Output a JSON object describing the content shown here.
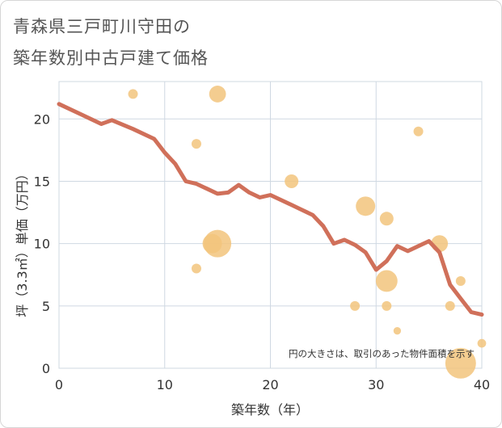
{
  "chart_data": {
    "type": "scatter",
    "title_lines": [
      "青森県三戸町川守田の",
      "築年数別中古戸建て価格"
    ],
    "xlabel": "築年数（年）",
    "ylabel": "坪（3.3㎡）単価（万円）",
    "xlim": [
      0,
      40
    ],
    "ylim": [
      0,
      23
    ],
    "xticks": [
      0,
      10,
      20,
      30,
      40
    ],
    "yticks": [
      0,
      5,
      10,
      15,
      20
    ],
    "note": "円の大きさは、取引のあった物件面積を示す",
    "colors": {
      "bubble": "#f2c47c",
      "line": "#d0705a",
      "grid": "#cfd8e2"
    },
    "bubbles": [
      {
        "x": 7,
        "y": 22,
        "size": 1
      },
      {
        "x": 15,
        "y": 22,
        "size": 3
      },
      {
        "x": 13,
        "y": 18,
        "size": 1
      },
      {
        "x": 34,
        "y": 19,
        "size": 1
      },
      {
        "x": 22,
        "y": 15,
        "size": 2
      },
      {
        "x": 29,
        "y": 13,
        "size": 4
      },
      {
        "x": 31,
        "y": 12,
        "size": 2
      },
      {
        "x": 14.5,
        "y": 10,
        "size": 4
      },
      {
        "x": 15,
        "y": 10,
        "size": 8
      },
      {
        "x": 36,
        "y": 10,
        "size": 3
      },
      {
        "x": 13,
        "y": 8,
        "size": 1
      },
      {
        "x": 31,
        "y": 7,
        "size": 5
      },
      {
        "x": 38,
        "y": 7,
        "size": 1
      },
      {
        "x": 28,
        "y": 5,
        "size": 1
      },
      {
        "x": 31,
        "y": 5,
        "size": 1
      },
      {
        "x": 37,
        "y": 5,
        "size": 1
      },
      {
        "x": 32,
        "y": 3,
        "size": 0.6
      },
      {
        "x": 40,
        "y": 2,
        "size": 0.8
      },
      {
        "x": 38,
        "y": 0.4,
        "size": 10
      }
    ],
    "trend": {
      "x": [
        0,
        2,
        4,
        5,
        7,
        9,
        10,
        11,
        12,
        13,
        14,
        15,
        16,
        17,
        18,
        19,
        20,
        21,
        22,
        23,
        24,
        25,
        26,
        27,
        28,
        29,
        30,
        31,
        32,
        33,
        34,
        35,
        36,
        37,
        38,
        39,
        40
      ],
      "y": [
        21.2,
        20.4,
        19.6,
        19.9,
        19.2,
        18.4,
        17.3,
        16.4,
        15.0,
        14.8,
        14.4,
        14.0,
        14.1,
        14.7,
        14.1,
        13.7,
        13.9,
        13.5,
        13.1,
        12.7,
        12.3,
        11.4,
        10.0,
        10.3,
        9.9,
        9.3,
        7.9,
        8.6,
        9.8,
        9.4,
        9.8,
        10.2,
        9.3,
        6.7,
        5.6,
        4.5,
        4.3
      ]
    }
  }
}
